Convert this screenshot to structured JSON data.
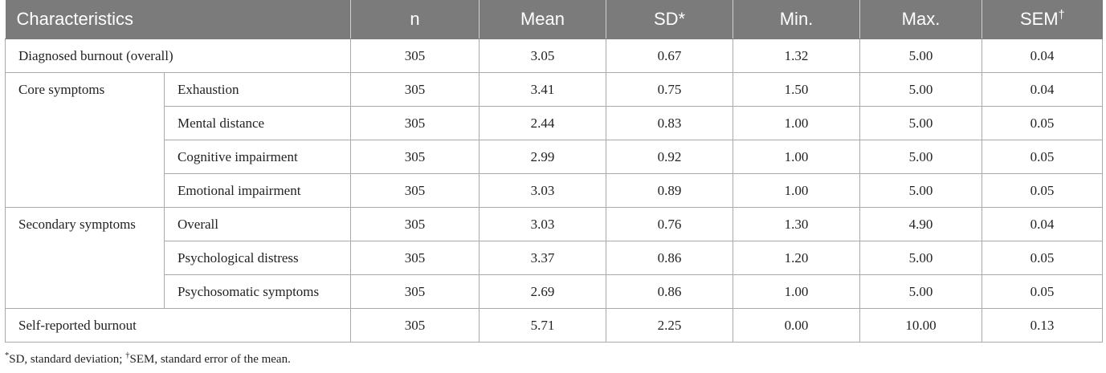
{
  "table": {
    "headers": {
      "characteristics": "Characteristics",
      "n": "n",
      "mean": "Mean",
      "sd": "SD",
      "sd_mark": "*",
      "min": "Min.",
      "max": "Max.",
      "sem": "SEM",
      "sem_mark": "†"
    },
    "overall": {
      "label": "Diagnosed burnout (overall)",
      "n": "305",
      "mean": "3.05",
      "sd": "0.67",
      "min": "1.32",
      "max": "5.00",
      "sem": "0.04"
    },
    "core": {
      "group": "Core symptoms",
      "rows": [
        {
          "label": "Exhaustion",
          "n": "305",
          "mean": "3.41",
          "sd": "0.75",
          "min": "1.50",
          "max": "5.00",
          "sem": "0.04"
        },
        {
          "label": "Mental distance",
          "n": "305",
          "mean": "2.44",
          "sd": "0.83",
          "min": "1.00",
          "max": "5.00",
          "sem": "0.05"
        },
        {
          "label": "Cognitive impairment",
          "n": "305",
          "mean": "2.99",
          "sd": "0.92",
          "min": "1.00",
          "max": "5.00",
          "sem": "0.05"
        },
        {
          "label": "Emotional impairment",
          "n": "305",
          "mean": "3.03",
          "sd": "0.89",
          "min": "1.00",
          "max": "5.00",
          "sem": "0.05"
        }
      ]
    },
    "secondary": {
      "group": "Secondary symptoms",
      "rows": [
        {
          "label": "Overall",
          "n": "305",
          "mean": "3.03",
          "sd": "0.76",
          "min": "1.30",
          "max": "4.90",
          "sem": "0.04"
        },
        {
          "label": "Psychological distress",
          "n": "305",
          "mean": "3.37",
          "sd": "0.86",
          "min": "1.20",
          "max": "5.00",
          "sem": "0.05"
        },
        {
          "label": "Psychosomatic symptoms",
          "n": "305",
          "mean": "2.69",
          "sd": "0.86",
          "min": "1.00",
          "max": "5.00",
          "sem": "0.05"
        }
      ]
    },
    "self_reported": {
      "label": "Self-reported burnout",
      "n": "305",
      "mean": "5.71",
      "sd": "2.25",
      "min": "0.00",
      "max": "10.00",
      "sem": "0.13"
    }
  },
  "footnote": {
    "mark1": "*",
    "text1": "SD, standard deviation; ",
    "mark2": "†",
    "text2": "SEM, standard error of the mean."
  }
}
